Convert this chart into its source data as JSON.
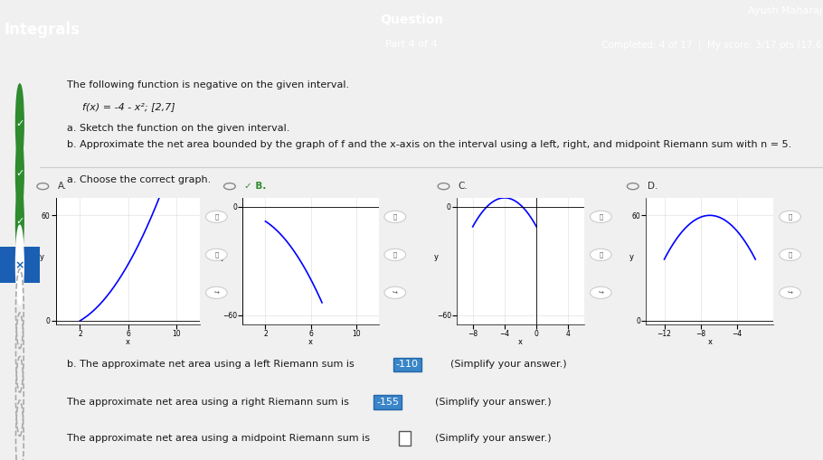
{
  "header_bg": "#2e86ab",
  "header_text_color": "#ffffff",
  "title_left": "Integrals",
  "title_center_top": "Question",
  "title_center_bot": "Part 4 of 4",
  "title_right": "Ayush Maharaj",
  "completed_text": "Completed: 4 of 17  |  My score: 3/17 pts (17.6",
  "body_bg": "#f0f0f0",
  "sidebar_bg": "#e8e8e8",
  "problem_text": "The following function is negative on the given interval.",
  "function_text": "f(x) = -4 - x²; [2,7]",
  "part_a_text": "a. Sketch the function on the given interval.",
  "part_b_text": "b. Approximate the net area bounded by the graph of f and the x-axis on the interval using a left, right, and midpoint Riemann sum with n = 5.",
  "choose_graph_text": "a. Choose the correct graph.",
  "graph_labels": [
    "A.",
    "B.",
    "C.",
    "D."
  ],
  "selected_graph": "B",
  "left_sum_text": "b. The approximate net area using a left Riemann sum is",
  "left_sum_value": "-110",
  "right_sum_text": "The approximate net area using a right Riemann sum is",
  "right_sum_value": "-155",
  "midpoint_sum_text": "The approximate net area using a midpoint Riemann sum is",
  "simplify_text": "(Simplify your answer.)"
}
